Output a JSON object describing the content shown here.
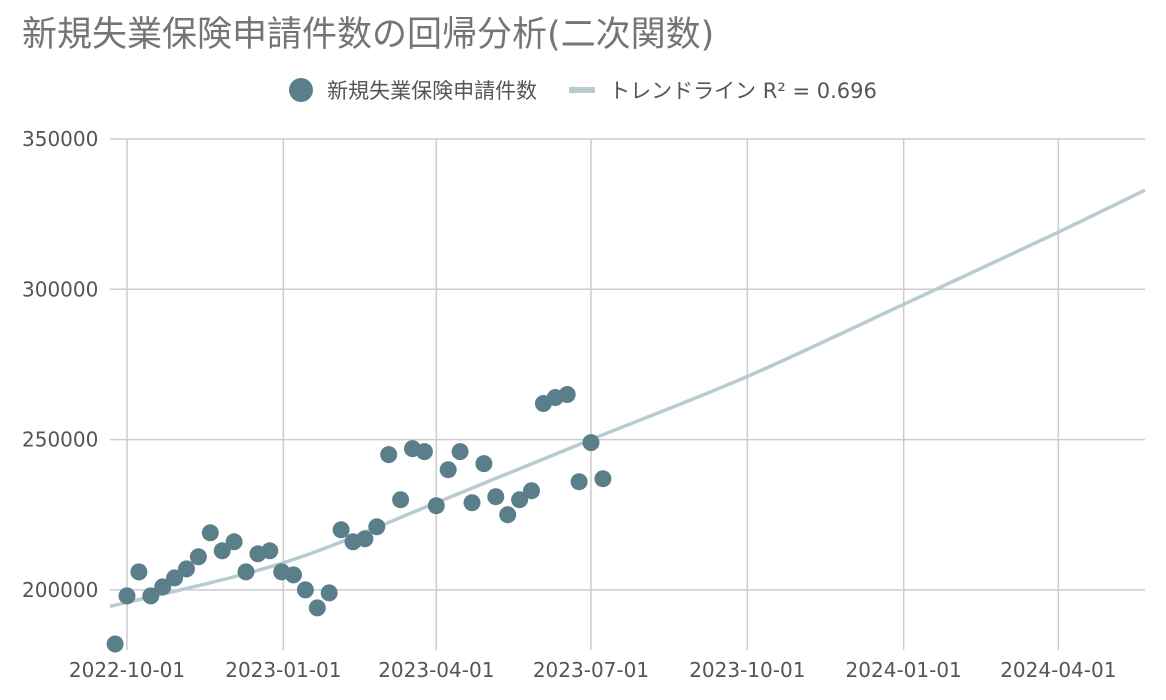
{
  "chart_data": {
    "type": "scatter",
    "title": "新規失業保険申請件数の回帰分析(二次関数)",
    "legend": {
      "placement": "top-center",
      "series_label": "新規失業保険申請件数",
      "trend_label": "トレンドライン R² = 0.696"
    },
    "colors": {
      "points": "#5B7F8A",
      "trend": "#B8CBD1",
      "grid": "#CCCCCC"
    },
    "xlim": [
      "2022-09-21",
      "2024-05-22"
    ],
    "ylim": [
      182000,
      350000
    ],
    "y_ticks": [
      "200000",
      "250000",
      "300000",
      "350000"
    ],
    "x_ticks": [
      "2022-10-01",
      "2023-01-01",
      "2023-04-01",
      "2023-07-01",
      "2023-10-01",
      "2024-01-01",
      "2024-04-01"
    ],
    "grid": true,
    "series": [
      {
        "name": "新規失業保険申請件数",
        "points": [
          [
            "2022-09-24",
            182000
          ],
          [
            "2022-10-01",
            198000
          ],
          [
            "2022-10-08",
            206000
          ],
          [
            "2022-10-15",
            198000
          ],
          [
            "2022-10-22",
            201000
          ],
          [
            "2022-10-29",
            204000
          ],
          [
            "2022-11-05",
            207000
          ],
          [
            "2022-11-12",
            211000
          ],
          [
            "2022-11-19",
            219000
          ],
          [
            "2022-11-26",
            213000
          ],
          [
            "2022-12-03",
            216000
          ],
          [
            "2022-12-10",
            206000
          ],
          [
            "2022-12-17",
            212000
          ],
          [
            "2022-12-24",
            213000
          ],
          [
            "2022-12-31",
            206000
          ],
          [
            "2023-01-07",
            205000
          ],
          [
            "2023-01-14",
            200000
          ],
          [
            "2023-01-21",
            194000
          ],
          [
            "2023-01-28",
            199000
          ],
          [
            "2023-02-04",
            220000
          ],
          [
            "2023-02-11",
            216000
          ],
          [
            "2023-02-18",
            217000
          ],
          [
            "2023-02-25",
            221000
          ],
          [
            "2023-03-04",
            245000
          ],
          [
            "2023-03-11",
            230000
          ],
          [
            "2023-03-18",
            247000
          ],
          [
            "2023-03-25",
            246000
          ],
          [
            "2023-04-01",
            228000
          ],
          [
            "2023-04-08",
            240000
          ],
          [
            "2023-04-15",
            246000
          ],
          [
            "2023-04-22",
            229000
          ],
          [
            "2023-04-29",
            242000
          ],
          [
            "2023-05-06",
            231000
          ],
          [
            "2023-05-13",
            225000
          ],
          [
            "2023-05-20",
            230000
          ],
          [
            "2023-05-27",
            233000
          ],
          [
            "2023-06-03",
            262000
          ],
          [
            "2023-06-10",
            264000
          ],
          [
            "2023-06-17",
            265000
          ],
          [
            "2023-06-24",
            236000
          ],
          [
            "2023-07-01",
            249000
          ],
          [
            "2023-07-08",
            237000
          ]
        ]
      }
    ],
    "trendline": {
      "type": "quadratic",
      "r_squared": 0.696,
      "points": [
        [
          "2022-09-21",
          194500
        ],
        [
          "2023-01-01",
          209000
        ],
        [
          "2023-04-01",
          229000
        ],
        [
          "2023-07-01",
          250000
        ],
        [
          "2023-10-01",
          271000
        ],
        [
          "2024-01-01",
          295000
        ],
        [
          "2024-04-01",
          319000
        ],
        [
          "2024-05-22",
          333000
        ]
      ]
    }
  }
}
